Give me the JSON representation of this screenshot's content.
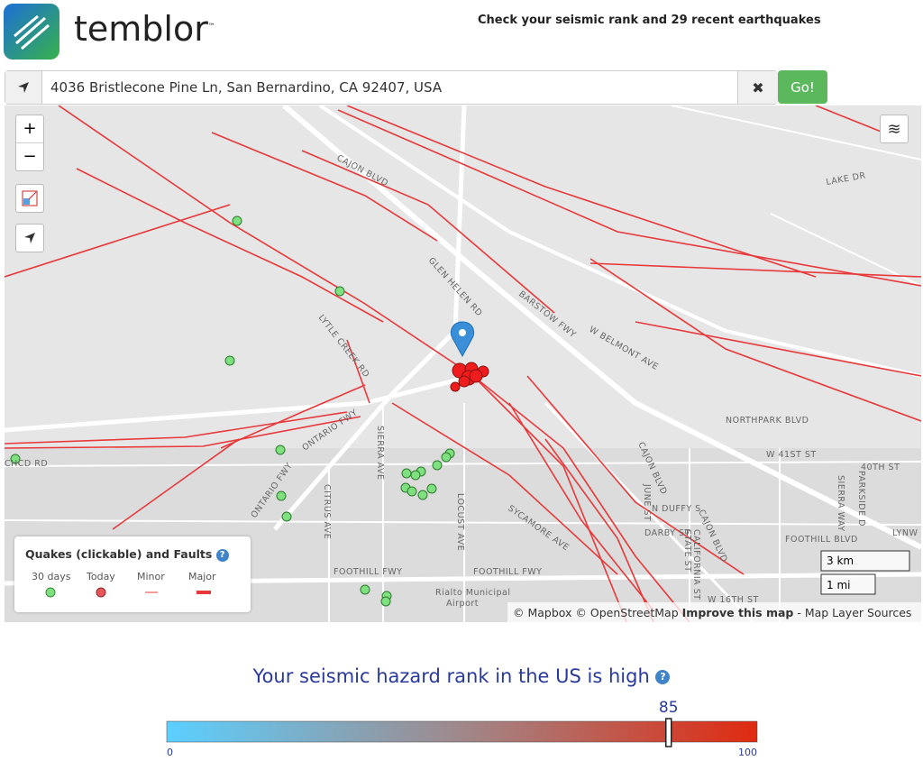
{
  "header": {
    "logo": "temblor",
    "trademark": "™",
    "tagline": "Check your seismic rank and 29 recent earthquakes"
  },
  "search": {
    "address": "4036 Bristlecone Pine Ln, San Bernardino, CA 92407, USA",
    "clear": "✖",
    "button": "Go!"
  },
  "map": {
    "zoom_in": "+",
    "zoom_out": "−",
    "street_labels": [
      "CAJON BLVD",
      "LAKE DR",
      "GLEN HELEN RD",
      "BARSTOW FWY",
      "W BELMONT AVE",
      "LYTLE CREEK RD",
      "NORTHPARK BLVD",
      "W 41ST ST",
      "40TH ST",
      "CAJON BLVD",
      "SIERRA AVE",
      "ONTARIO FWY",
      "ONTARIO FWY",
      "CITRUS AVE",
      "LOCUST AVE",
      "SYCAMORE AVE",
      "JUNE ST",
      "N DUFFY S",
      "DARBY ST",
      "STATE ST",
      "CALIFORNIA ST",
      "CAJON BLVD",
      "FOOTHILL BLVD",
      "FOOTHILL FWY",
      "FOOTHILL FWY",
      "Rialto Municipal",
      "Airport",
      "W 16TH ST",
      "LYNW",
      "PARKSIDE D",
      "SIERRA WAY",
      "CHCD RD"
    ],
    "scale": [
      "3 km",
      "1 mi"
    ],
    "attribution": "© Mapbox © OpenStreetMap",
    "improve": "Improve this map",
    "sources": "- Map Layer Sources"
  },
  "legend": {
    "title": "Quakes (clickable) and Faults",
    "help": "?",
    "items": [
      "30 days",
      "Today",
      "Minor",
      "Major"
    ]
  },
  "rank": {
    "text": "Your seismic hazard rank in the US is high",
    "help": "?",
    "value": 85,
    "min": 0,
    "max": 100
  }
}
